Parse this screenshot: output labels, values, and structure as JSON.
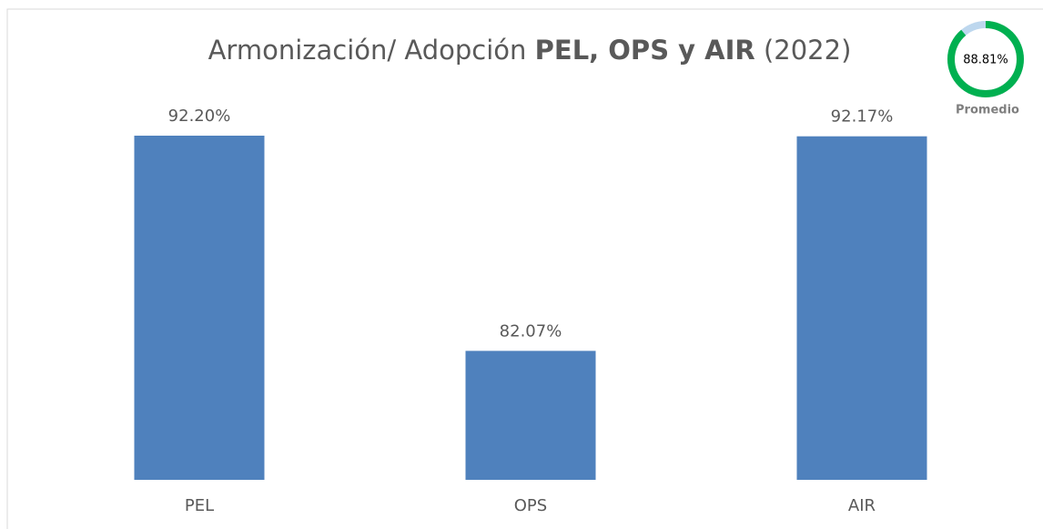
{
  "chart_data": {
    "type": "bar",
    "title_parts": [
      "Armonización/ Adopción",
      "PEL, OPS y AIR",
      "(2022)"
    ],
    "categories": [
      "PEL",
      "OPS",
      "AIR"
    ],
    "values": [
      92.2,
      82.07,
      92.17
    ],
    "value_labels": [
      "92.20%",
      "82.07%",
      "92.17%"
    ],
    "color": "#4f81bd",
    "ylim": [
      76,
      94
    ],
    "gauge": {
      "value": 88.81,
      "value_label": "88.81%",
      "label": "Promedio",
      "max": 100,
      "color": "#00b050",
      "track_color": "#bdd7ee"
    }
  }
}
